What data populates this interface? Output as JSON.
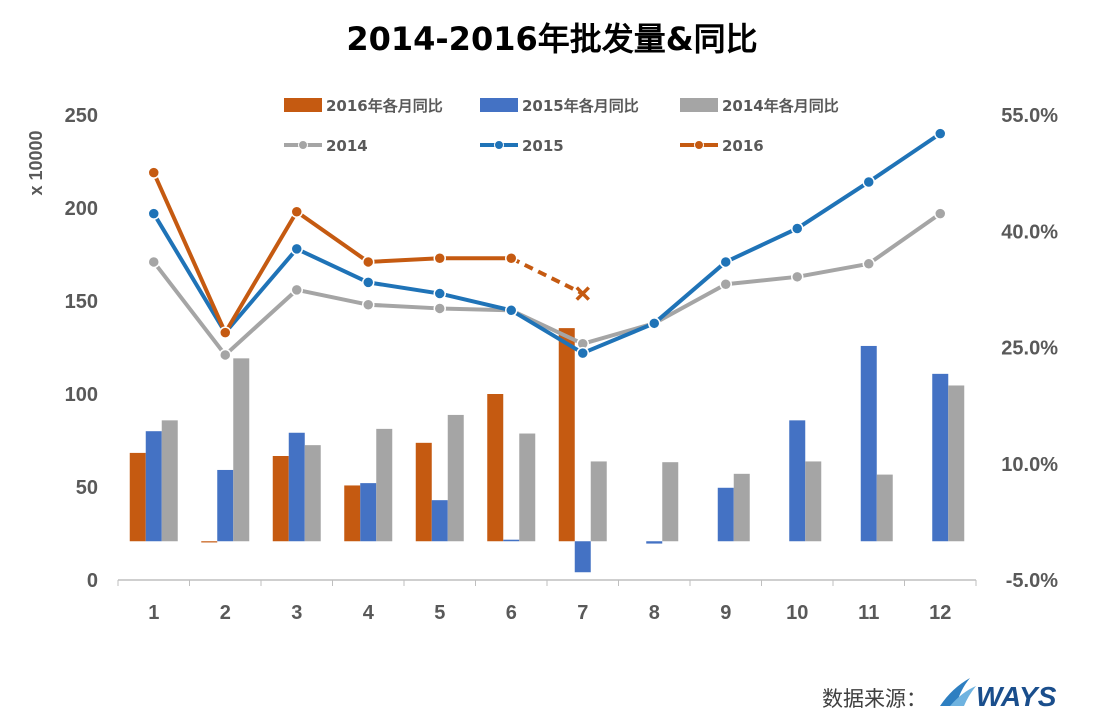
{
  "chart_data": {
    "type": "bar+line",
    "title": "2014-2016年批发量&同比",
    "ylabel": "x 10000",
    "categories": [
      "1",
      "2",
      "3",
      "4",
      "5",
      "6",
      "7",
      "8",
      "9",
      "10",
      "11",
      "12"
    ],
    "ylim": [
      0,
      250
    ],
    "y_ticks": [
      "0",
      "50",
      "100",
      "150",
      "200",
      "250"
    ],
    "y2lim": [
      -5.0,
      55.0
    ],
    "y2_ticks": [
      "-5.0%",
      "10.0%",
      "25.0%",
      "40.0%",
      "55.0%"
    ],
    "bar_series": [
      {
        "name": "2016年各月同比",
        "color": "#c55a11",
        "values": [
          11.4,
          -0.1,
          11.0,
          7.2,
          12.7,
          19.0,
          27.5,
          null,
          null,
          null,
          null,
          null
        ]
      },
      {
        "name": "2015年各月同比",
        "color": "#4472c4",
        "values": [
          14.2,
          9.2,
          14.0,
          7.5,
          5.3,
          0.2,
          -4.0,
          -0.3,
          6.9,
          15.6,
          25.2,
          21.6
        ]
      },
      {
        "name": "2014年各月同比",
        "color": "#a5a5a5",
        "values": [
          15.6,
          23.6,
          12.4,
          14.5,
          16.3,
          13.9,
          10.3,
          10.2,
          8.7,
          10.3,
          8.6,
          20.1
        ]
      }
    ],
    "line_series": [
      {
        "name": "2014",
        "color": "#a5a5a5",
        "values": [
          171,
          121,
          156,
          148,
          146,
          145,
          127,
          138,
          159,
          163,
          170,
          197
        ]
      },
      {
        "name": "2015",
        "color": "#1f73b7",
        "values": [
          197,
          133,
          178,
          160,
          154,
          145,
          122,
          138,
          171,
          189,
          214,
          240
        ]
      },
      {
        "name": "2016",
        "color": "#c55a11",
        "values": [
          219,
          133,
          198,
          171,
          173,
          173,
          154,
          null,
          null,
          null,
          null,
          null
        ],
        "dashed_from_index": 5
      }
    ],
    "legend_position": "top",
    "grid": false
  },
  "source": {
    "label": "数据来源：",
    "logo_text": "WAYS"
  }
}
